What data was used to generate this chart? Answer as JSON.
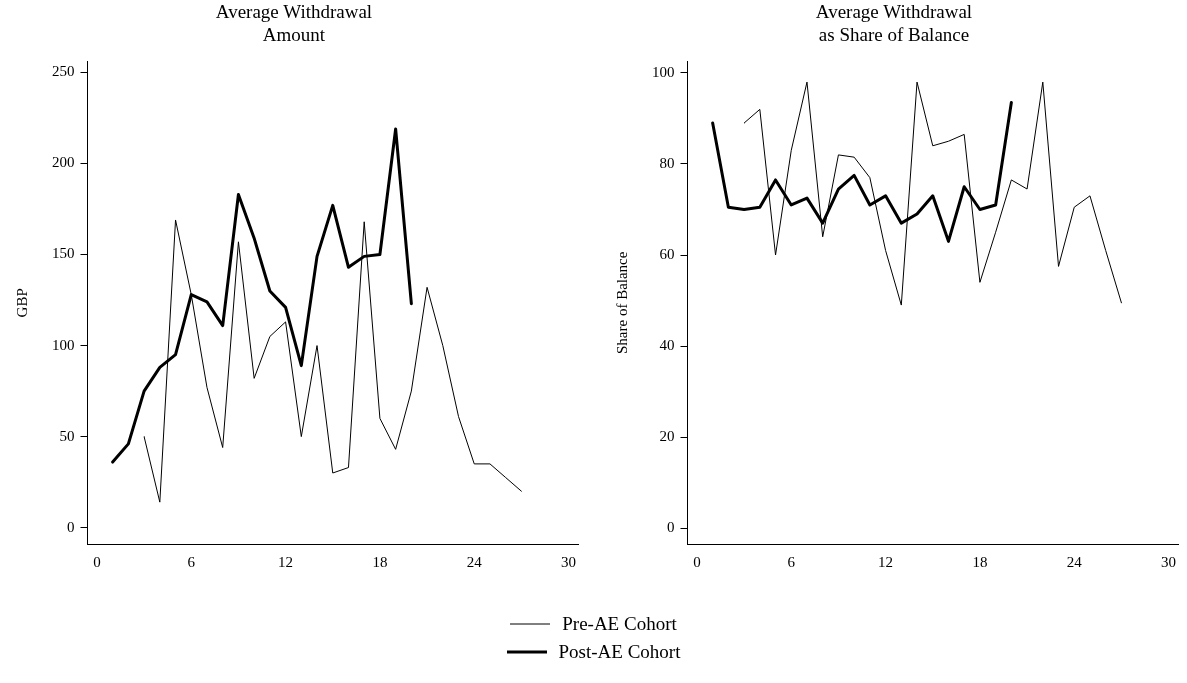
{
  "chart_data": [
    {
      "type": "line",
      "title": "Average Withdrawal Amount",
      "ylabel": "GBP",
      "x": [
        1,
        2,
        3,
        4,
        5,
        6,
        7,
        8,
        9,
        10,
        11,
        12,
        13,
        14,
        15,
        16,
        17,
        18,
        19,
        20,
        21,
        22,
        23,
        24,
        25,
        26,
        27
      ],
      "xlim": [
        -0.6,
        30.6
      ],
      "xticks": [
        0,
        6,
        12,
        18,
        24,
        30
      ],
      "ylim": [
        -9,
        256
      ],
      "yticks": [
        0,
        50,
        100,
        150,
        200,
        250
      ],
      "grid": false,
      "legend": "bottom",
      "marker": "none",
      "line_style": "solid",
      "series": [
        {
          "name": "Pre-AE Cohort",
          "color": "#000000",
          "values": [
            null,
            null,
            50,
            14,
            169,
            128,
            77,
            44,
            157,
            82,
            105,
            113,
            50,
            100,
            30,
            33,
            168,
            60,
            43,
            75,
            132,
            100,
            61,
            35,
            35,
            27.5,
            20
          ]
        },
        {
          "name": "Post-AE Cohort",
          "color": "#000000",
          "values": [
            36,
            46,
            75,
            88,
            95,
            128,
            124,
            111,
            183,
            159,
            130,
            121,
            89,
            149,
            177,
            143,
            149,
            150,
            219,
            123,
            null,
            null,
            null,
            null,
            null,
            null,
            null
          ]
        }
      ]
    },
    {
      "type": "line",
      "title": "Average Withdrawal as Share of Balance",
      "ylabel": "Share of Balance",
      "x": [
        1,
        2,
        3,
        4,
        5,
        6,
        7,
        8,
        9,
        10,
        11,
        12,
        13,
        14,
        15,
        16,
        17,
        18,
        19,
        20,
        21,
        22,
        23,
        24,
        25,
        26,
        27
      ],
      "xlim": [
        -0.6,
        30.6
      ],
      "xticks": [
        0,
        6,
        12,
        18,
        24,
        30
      ],
      "ylim": [
        -3.5,
        102.5
      ],
      "yticks": [
        0,
        20,
        40,
        60,
        80,
        100
      ],
      "grid": false,
      "marker": "none",
      "line_style": "solid",
      "series": [
        {
          "color": "#000000",
          "values": [
            null,
            null,
            89,
            92,
            60,
            83,
            98,
            64,
            82,
            81.5,
            77,
            61,
            49,
            98,
            84,
            85,
            86.5,
            54,
            65,
            76.5,
            74.5,
            98,
            57.5,
            70.5,
            73,
            61,
            49.5
          ]
        },
        {
          "color": "#000000",
          "values": [
            89,
            70.5,
            70,
            70.5,
            76.5,
            71,
            72.5,
            67,
            74.5,
            77.5,
            71,
            73,
            67,
            69,
            73,
            63,
            75,
            70,
            71,
            93.5,
            null,
            null,
            null,
            null,
            null,
            null,
            null
          ]
        }
      ]
    }
  ]
}
